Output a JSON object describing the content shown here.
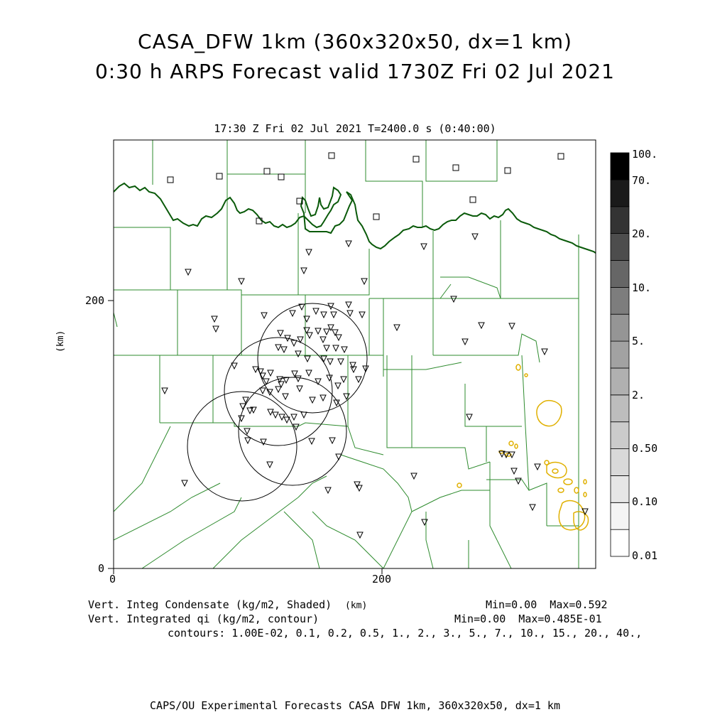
{
  "title_line1": "CASA_DFW 1km (360x320x50, dx=1 km)",
  "title_line2": "0:30 h ARPS Forecast valid 1730Z Fri 02 Jul 2021",
  "subtitle": "17:30 Z Fri 02 Jul 2021    T=2400.0 s (0:40:00)",
  "axes": {
    "x_ticks": [
      "0",
      "200"
    ],
    "y_ticks": [
      "0",
      "200"
    ],
    "y_label": "(km)",
    "x_label": "(km)"
  },
  "info": {
    "field1_label": "Vert. Integ Condensate (kg/m2, Shaded)",
    "field1_stats": "Min=0.00  Max=0.592",
    "field2_label": "Vert. Integrated qi (kg/m2, contour)",
    "field2_stats": "Min=0.00  Max=0.485E-01",
    "contours": "contours: 1.00E-02, 0.1, 0.2, 0.5, 1., 2., 3., 5., 7., 10., 15., 20., 40.,"
  },
  "colorbar": {
    "labels": [
      "100.",
      "70.",
      "20.",
      "10.",
      "5.",
      "2.",
      "0.50",
      "0.10",
      "0.01"
    ],
    "colors": [
      "#ffffff",
      "#f4f4f4",
      "#e6e6e6",
      "#d9d9d9",
      "#cbcbcb",
      "#bdbdbd",
      "#b0b0b0",
      "#a2a2a2",
      "#959595",
      "#7d7d7d",
      "#666666",
      "#4d4d4d",
      "#333333",
      "#1a1a1a",
      "#000000"
    ]
  },
  "colors": {
    "county_lines": "#2e8b2e",
    "state_border": "#0a5a0a",
    "contour": "#e0b000",
    "radar_rings": "#000000"
  },
  "footer": "CAPS/OU Experimental Forecasts  CASA DFW 1km, 360x320x50, dx=1 km"
}
